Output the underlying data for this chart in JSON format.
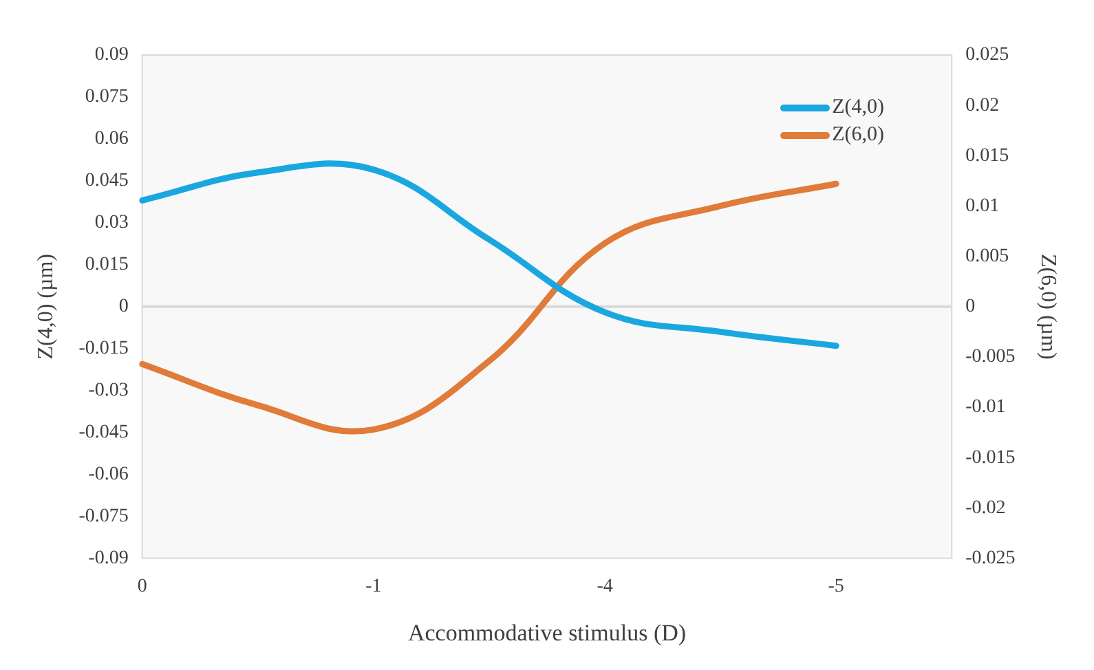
{
  "chart_data": {
    "type": "line",
    "xlabel": "Accommodative stimulus (D)",
    "ylabel": "Z(4,0) (µm)",
    "y2label": "Z(6,0) (µm)",
    "categories": [
      "0",
      null,
      "-1",
      null,
      "-4",
      null,
      "-5",
      null
    ],
    "series": [
      {
        "name": "Z(4,0)",
        "color": "#1aa7e0",
        "values": [
          0.038,
          0.048,
          0.049,
          0.024,
          -0.002,
          -0.009,
          -0.014,
          null
        ]
      },
      {
        "name": "Z(6,0)",
        "color": "#e07b39",
        "axis": "y2",
        "values": [
          -0.0057,
          -0.0098,
          -0.0122,
          -0.0054,
          0.0063,
          0.01,
          0.0122,
          null
        ]
      }
    ],
    "ylim": [
      -0.09,
      0.09
    ],
    "yticks": [
      0.09,
      0.075,
      0.06,
      0.045,
      0.03,
      0.015,
      0,
      -0.015,
      -0.03,
      -0.045,
      -0.06,
      -0.075,
      -0.09
    ],
    "y2lim": [
      -0.025,
      0.025
    ],
    "y2ticks": [
      0.025,
      0.02,
      0.015,
      0.01,
      0.005,
      0,
      -0.005,
      -0.01,
      -0.015,
      -0.02,
      -0.025
    ],
    "ref_lines": [
      {
        "axis": "y",
        "value": 0,
        "color": "#d9d9d9"
      }
    ],
    "grid": false,
    "legend": "top right",
    "marker": "none",
    "line_style": "solid"
  }
}
